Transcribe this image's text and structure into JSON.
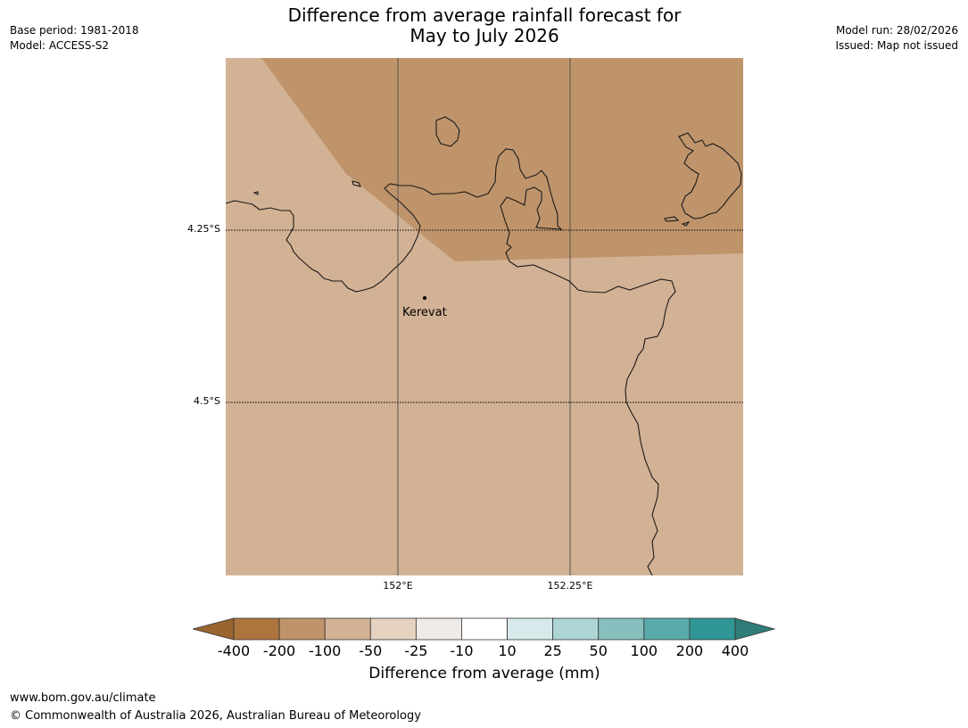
{
  "header": {
    "left_lines": [
      "Base period: 1981-2018",
      "Model: ACCESS-S2"
    ],
    "right_lines": [
      "Model run: 28/02/2026",
      "Issued: Map not issued"
    ],
    "title_lines": [
      "Difference from average rainfall forecast for",
      "May to July 2026"
    ]
  },
  "map": {
    "latitude_labels": [
      "4.25°S",
      "4.5°S"
    ],
    "longitude_labels": [
      "152°E",
      "152.25°E"
    ],
    "places": [
      {
        "name": "Kerevat"
      }
    ],
    "fill_categories": {
      "north_region": "-200 to -100",
      "south_region": "-100 to -50"
    },
    "colors": {
      "north_region": "#c0946a",
      "south_region": "#d2b294",
      "coastline": "#1a1a1a",
      "gridline": "#555555"
    }
  },
  "colorbar": {
    "label": "Difference from average (mm)",
    "tick_labels": [
      "-400",
      "-200",
      "-100",
      "-50",
      "-25",
      "-10",
      "10",
      "25",
      "50",
      "100",
      "200",
      "400"
    ],
    "extend_low_color": "#9a6430",
    "extend_high_color": "#2f7c78",
    "bin_colors": [
      "#ae743d",
      "#c0946a",
      "#d2b294",
      "#e5d2c0",
      "#efebe8",
      "#ffffff",
      "#d7e9ea",
      "#aed5d5",
      "#85c0be",
      "#59aaab",
      "#319796"
    ]
  },
  "footer": {
    "url": "www.bom.gov.au/climate",
    "copyright": "© Commonwealth of Australia 2026, Australian Bureau of Meteorology"
  }
}
